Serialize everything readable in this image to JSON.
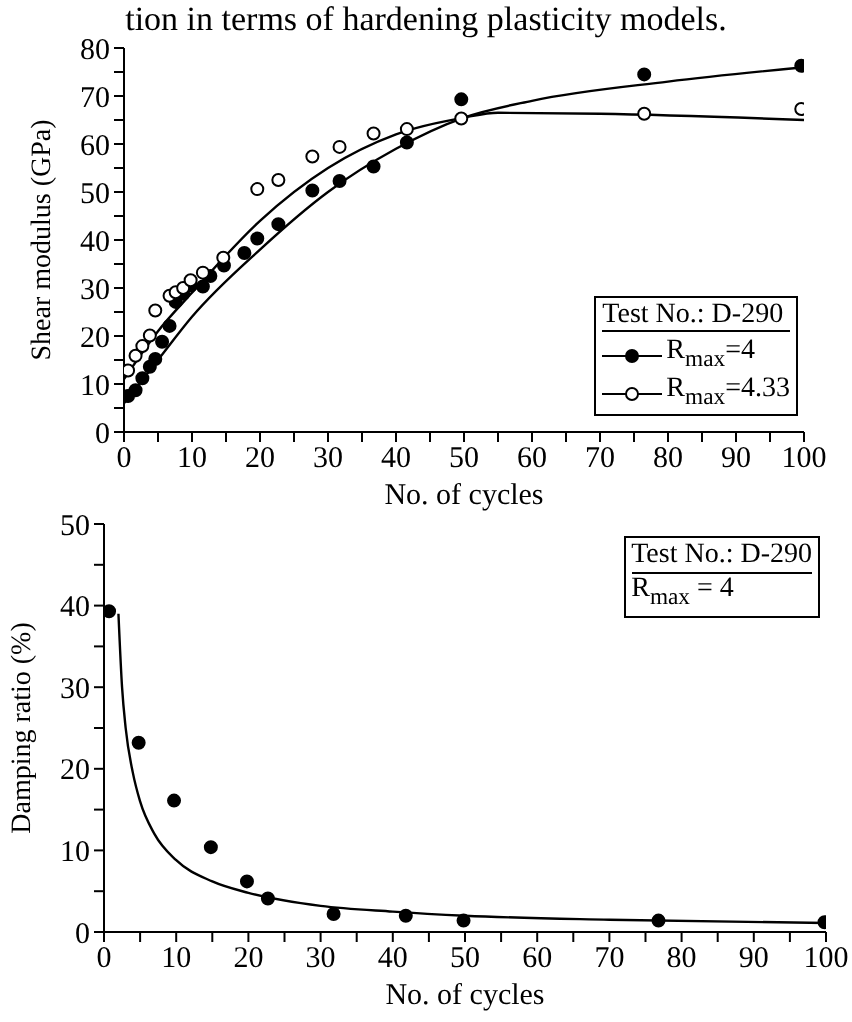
{
  "chart_data": [
    {
      "type": "scatter",
      "annotations": [
        "tion in terms of hardening plasticity models."
      ],
      "xlabel": "No. of cycles",
      "ylabel": "Shear modulus (GPa)",
      "legend": "bottom right",
      "legend_title": "Test No.: D-290",
      "grid": false,
      "xlim": [
        0,
        100
      ],
      "xticks": [
        0,
        {
          "value": 5,
          "label": null
        },
        10,
        {
          "value": 15,
          "label": null
        },
        20,
        {
          "value": 25,
          "label": null
        },
        30,
        {
          "value": 35,
          "label": null
        },
        40,
        {
          "value": 45,
          "label": null
        },
        50,
        {
          "value": 55,
          "label": null
        },
        60,
        {
          "value": 65,
          "label": null
        },
        70,
        {
          "value": 75,
          "label": null
        },
        80,
        {
          "value": 85,
          "label": null
        },
        90,
        {
          "value": 95,
          "label": null
        },
        100
      ],
      "ylim": [
        0,
        80
      ],
      "yticks": [
        0,
        {
          "value": 5,
          "label": null
        },
        10,
        {
          "value": 15,
          "label": null
        },
        20,
        {
          "value": 25,
          "label": null
        },
        30,
        {
          "value": 35,
          "label": null
        },
        40,
        {
          "value": 45,
          "label": null
        },
        50,
        {
          "value": 55,
          "label": null
        },
        60,
        {
          "value": 65,
          "label": null
        },
        70,
        {
          "value": 75,
          "label": null
        },
        80
      ],
      "series": [
        {
          "name": "R$_{max}$=4",
          "color": "#000000",
          "marker": "circle",
          "x": [
            0.6,
            1.7,
            2.7,
            3.8,
            4.6,
            5.6,
            6.7,
            7.6,
            8.7,
            9.8,
            11.6,
            12.7,
            14.7,
            17.7,
            19.6,
            22.7,
            27.7,
            31.7,
            36.7,
            41.6,
            49.6,
            76.5,
            99.6
          ],
          "values": [
            7.5,
            8.7,
            11.2,
            13.6,
            15.2,
            18.8,
            22.1,
            27.1,
            28.8,
            30.5,
            30.3,
            32.5,
            34.7,
            37.3,
            40.3,
            43.3,
            50.3,
            52.3,
            55.3,
            60.3,
            69.3,
            74.5,
            76.3
          ]
        },
        {
          "name": "R$_{max}$=4.33",
          "color": "#ffffff",
          "marker": "circle",
          "x": [
            0.6,
            1.7,
            2.7,
            3.8,
            4.6,
            6.7,
            7.6,
            8.7,
            9.8,
            11.6,
            14.6,
            19.6,
            22.7,
            27.7,
            31.7,
            36.7,
            41.6,
            49.6,
            76.5,
            99.6
          ],
          "values": [
            12.8,
            15.9,
            17.9,
            20.1,
            25.3,
            28.4,
            29.1,
            30,
            31.6,
            33.2,
            36.3,
            50.6,
            52.5,
            57.4,
            59.4,
            62.2,
            63.1,
            65.3,
            66.3,
            67.3
          ]
        },
        {
          "type": "line",
          "color": "#000000",
          "marker": "none",
          "x": [
            0,
            5,
            10,
            20,
            30,
            40,
            50,
            60,
            80,
            100
          ],
          "values": [
            6,
            15,
            24,
            38,
            50,
            59,
            65.5,
            69,
            73,
            76
          ]
        },
        {
          "type": "line",
          "color": "#000000",
          "marker": "none",
          "x": [
            0,
            5,
            10,
            20,
            30,
            40,
            50,
            55,
            70,
            100
          ],
          "values": [
            11,
            21,
            29,
            44,
            55,
            62,
            65.5,
            66.5,
            66.3,
            65
          ]
        }
      ]
    },
    {
      "type": "scatter",
      "annotations": [
        "Test No.: D-290",
        "R$_{max}$ = 4"
      ],
      "xlabel": "No. of cycles",
      "ylabel": "Damping ratio (%)",
      "grid": false,
      "xlim": [
        0,
        100
      ],
      "xticks": [
        0,
        {
          "value": 5,
          "label": null
        },
        10,
        {
          "value": 15,
          "label": null
        },
        20,
        {
          "value": 25,
          "label": null
        },
        30,
        {
          "value": 35,
          "label": null
        },
        40,
        {
          "value": 45,
          "label": null
        },
        50,
        {
          "value": 55,
          "label": null
        },
        60,
        {
          "value": 65,
          "label": null
        },
        70,
        {
          "value": 75,
          "label": null
        },
        80,
        {
          "value": 85,
          "label": null
        },
        90,
        {
          "value": 95,
          "label": null
        },
        100
      ],
      "ylim": [
        0,
        50
      ],
      "yticks": [
        0,
        {
          "value": 5,
          "label": null
        },
        10,
        {
          "value": 15,
          "label": null
        },
        20,
        {
          "value": 25,
          "label": null
        },
        30,
        {
          "value": 35,
          "label": null
        },
        40,
        {
          "value": 45,
          "label": null
        },
        50
      ],
      "series": [
        {
          "color": "#000000",
          "marker": "circle",
          "x": [
            0.7,
            4.8,
            9.7,
            14.8,
            19.8,
            22.7,
            31.8,
            41.8,
            49.8,
            76.8,
            99.8
          ],
          "values": [
            39.3,
            23.2,
            16.1,
            10.4,
            6.2,
            4.1,
            2.2,
            2.0,
            1.4,
            1.4,
            1.2
          ]
        },
        {
          "type": "line",
          "color": "#000000",
          "marker": "none",
          "x": [
            2,
            2.5,
            3,
            4,
            5,
            7,
            10,
            15,
            20,
            30,
            40,
            50,
            70,
            100
          ],
          "values": [
            39,
            30,
            25,
            19.5,
            16,
            12,
            8.8,
            6.2,
            4.8,
            3.2,
            2.5,
            2,
            1.5,
            1.1
          ]
        }
      ]
    }
  ]
}
